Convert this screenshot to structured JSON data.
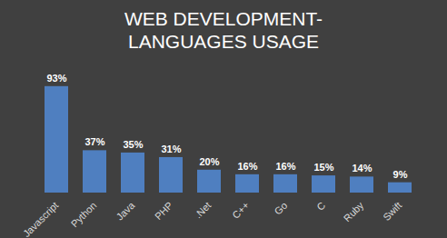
{
  "chart_data": {
    "type": "bar",
    "title": "WEB DEVELOPMENT-LANGUAGES USAGE",
    "categories": [
      "Javascript",
      "Python",
      "Java",
      "PHP",
      ".Net",
      "C++",
      "Go",
      "C",
      "Ruby",
      "Swift"
    ],
    "values": [
      93,
      37,
      35,
      31,
      20,
      16,
      16,
      15,
      14,
      9
    ],
    "value_labels": [
      "93%",
      "37%",
      "35%",
      "31%",
      "20%",
      "16%",
      "16%",
      "15%",
      "14%",
      "9%"
    ],
    "color": "#4f7fc0",
    "ylim": [
      0,
      100
    ],
    "data_labels": true,
    "tick_labels": "x"
  }
}
